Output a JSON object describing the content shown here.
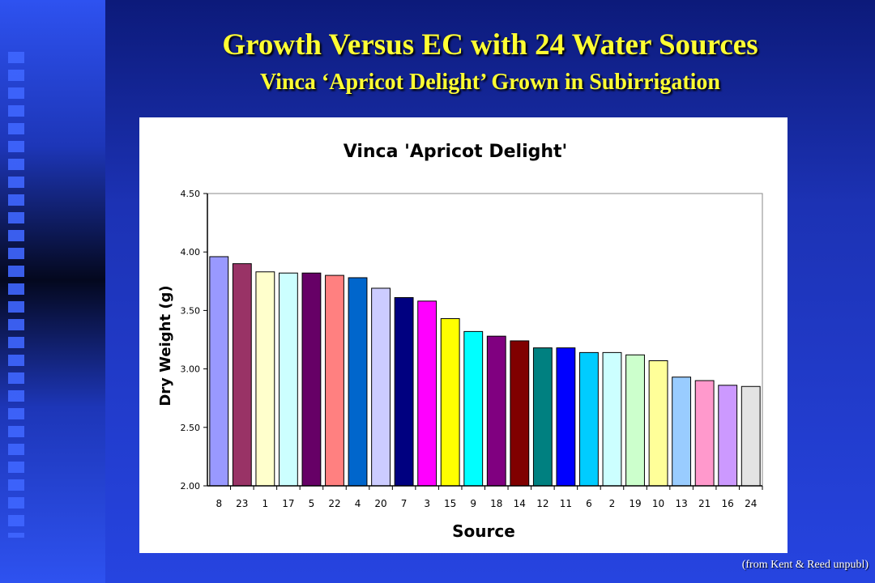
{
  "slide": {
    "title": "Growth Versus EC with 24 Water Sources",
    "subtitle": "Vinca ‘Apricot Delight’ Grown in Subirrigation",
    "credit": "(from Kent & Reed unpubl)"
  },
  "chart_data": {
    "type": "bar",
    "title": "Vinca 'Apricot Delight'",
    "xlabel": "Source",
    "ylabel": "Dry Weight (g)",
    "ylim": [
      2.0,
      4.5
    ],
    "yticks": [
      "2.00",
      "2.50",
      "3.00",
      "3.50",
      "4.00",
      "4.50"
    ],
    "grid": false,
    "categories": [
      "8",
      "23",
      "1",
      "17",
      "5",
      "22",
      "4",
      "20",
      "7",
      "3",
      "15",
      "9",
      "18",
      "14",
      "12",
      "11",
      "6",
      "2",
      "19",
      "10",
      "13",
      "21",
      "16",
      "24"
    ],
    "values": [
      3.96,
      3.9,
      3.83,
      3.82,
      3.82,
      3.8,
      3.78,
      3.69,
      3.61,
      3.58,
      3.43,
      3.32,
      3.28,
      3.24,
      3.18,
      3.18,
      3.14,
      3.14,
      3.12,
      3.07,
      2.93,
      2.9,
      2.86,
      2.85
    ],
    "colors": [
      "#9999ff",
      "#993366",
      "#ffffcc",
      "#ccffff",
      "#660066",
      "#ff8080",
      "#0066cc",
      "#ccccff",
      "#000080",
      "#ff00ff",
      "#ffff00",
      "#00ffff",
      "#800080",
      "#800000",
      "#008080",
      "#0000ff",
      "#00ccff",
      "#ccffff",
      "#ccffcc",
      "#ffff99",
      "#99ccff",
      "#ff99cc",
      "#cc99ff",
      "#e3e3e3"
    ]
  }
}
